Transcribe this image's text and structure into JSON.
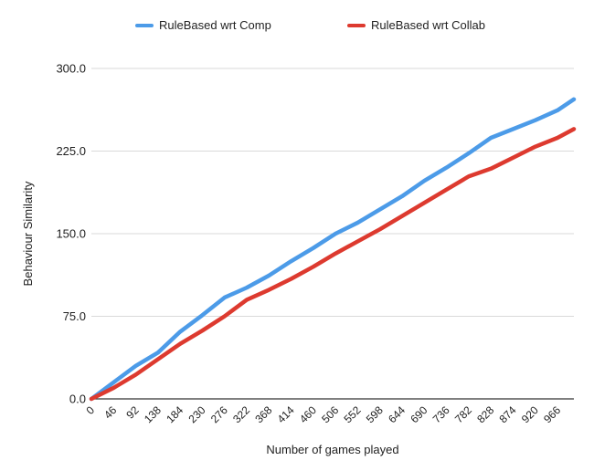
{
  "chart_data": {
    "type": "line",
    "title": "",
    "xlabel": "Number of games played",
    "ylabel": "Behaviour Similarity",
    "xlim": [
      0,
      1000
    ],
    "ylim": [
      0,
      300
    ],
    "legend_position": "top",
    "grid": true,
    "x_tick_labels": [
      "0",
      "46",
      "92",
      "138",
      "184",
      "230",
      "276",
      "322",
      "368",
      "414",
      "460",
      "506",
      "552",
      "598",
      "644",
      "690",
      "736",
      "782",
      "828",
      "874",
      "920",
      "966"
    ],
    "y_tick_labels": [
      "0.0",
      "75.0",
      "150.0",
      "225.0",
      "300.0"
    ],
    "series": [
      {
        "name": "RuleBased wrt Comp",
        "color": "#4c9be8",
        "x": [
          0,
          46,
          92,
          138,
          184,
          230,
          276,
          322,
          368,
          414,
          460,
          506,
          552,
          598,
          644,
          690,
          736,
          782,
          828,
          874,
          920,
          966,
          1000
        ],
        "y": [
          0,
          15,
          30,
          42,
          61,
          76,
          92,
          101,
          112,
          125,
          137,
          150,
          160,
          172,
          184,
          198,
          210,
          223,
          237,
          245,
          253,
          262,
          272
        ]
      },
      {
        "name": "RuleBased wrt Collab",
        "color": "#dd3a2f",
        "x": [
          0,
          46,
          92,
          138,
          184,
          230,
          276,
          322,
          368,
          414,
          460,
          506,
          552,
          598,
          644,
          690,
          736,
          782,
          828,
          874,
          920,
          966,
          1000
        ],
        "y": [
          0,
          10,
          22,
          36,
          50,
          62,
          75,
          90,
          99,
          109,
          120,
          132,
          143,
          154,
          166,
          178,
          190,
          202,
          209,
          219,
          229,
          237,
          245
        ]
      }
    ]
  }
}
